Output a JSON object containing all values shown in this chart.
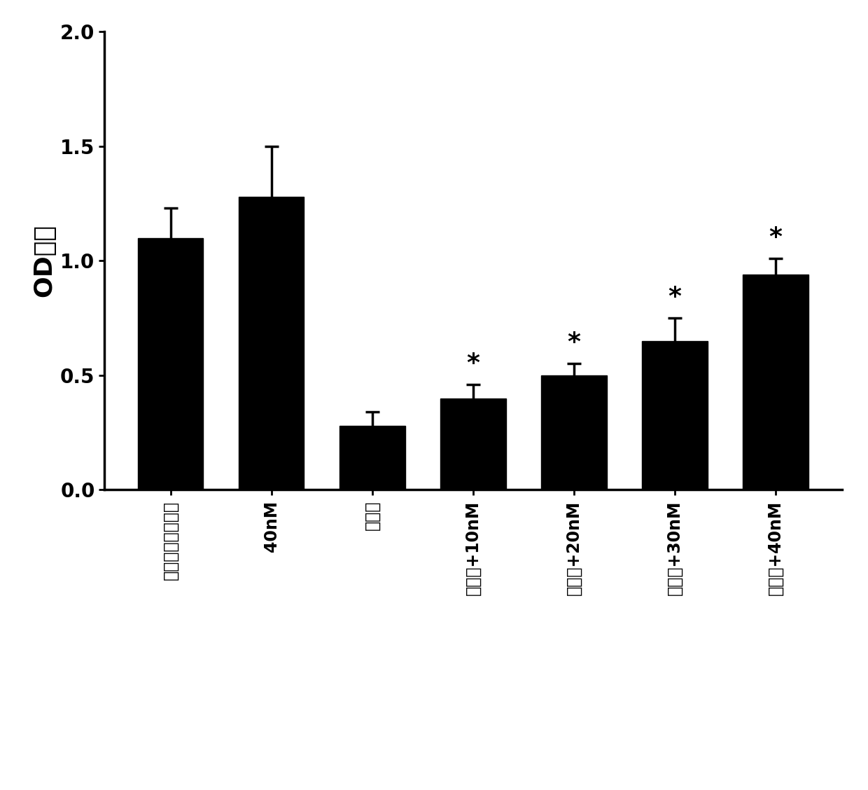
{
  "categories": [
    "空白对照组处理组",
    "40nM",
    "小红草",
    "小红草+10nM",
    "小红草+20nM",
    "小红草+30nM",
    "小红草+40nM"
  ],
  "values": [
    1.1,
    1.28,
    0.28,
    0.4,
    0.5,
    0.65,
    0.94
  ],
  "errors": [
    0.13,
    0.22,
    0.06,
    0.06,
    0.05,
    0.1,
    0.07
  ],
  "bar_color": "#000000",
  "ylabel": "OD山山",
  "ylim": [
    0.0,
    2.0
  ],
  "yticks": [
    0.0,
    0.5,
    1.0,
    1.5,
    2.0
  ],
  "ytick_labels": [
    "0.0",
    "0.5",
    "1.0",
    "1.5",
    "2.0"
  ],
  "significance": [
    false,
    false,
    false,
    true,
    true,
    true,
    true
  ],
  "background_color": "#ffffff",
  "bar_width": 0.65,
  "capsize": 7,
  "ylabel_fontsize": 26,
  "tick_fontsize": 20,
  "xtick_fontsize": 17,
  "star_fontsize": 26
}
